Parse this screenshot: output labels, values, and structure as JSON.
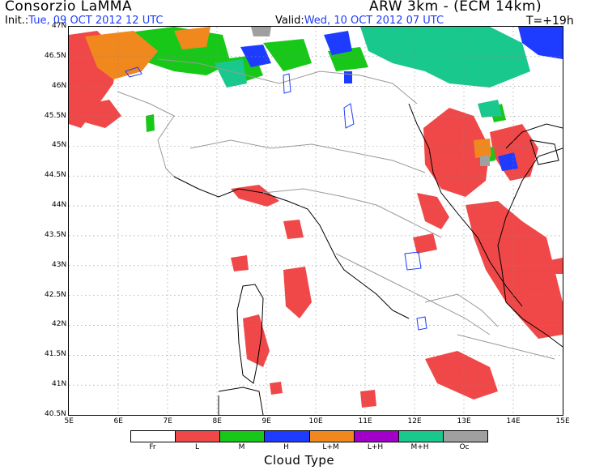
{
  "header": {
    "title": "Consorzio LaMMA",
    "model": "ARW 3km - (ECM 14km)",
    "init_label": "Init.:",
    "init_value": "Tue, 09 OCT 2012  12 UTC",
    "valid_label": "Valid:",
    "valid_value": "Wed, 10 OCT 2012  07 UTC",
    "forecast_step": "T=+19h"
  },
  "map": {
    "lon_ticks": [
      "5E",
      "6E",
      "7E",
      "8E",
      "9E",
      "10E",
      "11E",
      "12E",
      "13E",
      "14E",
      "15E"
    ],
    "lat_ticks": [
      "47N",
      "46.5N",
      "46N",
      "45.5N",
      "45N",
      "44.5N",
      "44N",
      "43.5N",
      "43N",
      "42.5N",
      "42N",
      "41.5N",
      "41N",
      "40.5N"
    ],
    "lon_range": [
      5,
      15
    ],
    "lat_range": [
      40.5,
      47
    ],
    "grid": true
  },
  "legend": {
    "title": "Cloud Type",
    "items": [
      {
        "label": "Fr",
        "color": "#ffffff"
      },
      {
        "label": "L",
        "color": "#f04848"
      },
      {
        "label": "M",
        "color": "#18c818"
      },
      {
        "label": "H",
        "color": "#1e3cff"
      },
      {
        "label": "L+M",
        "color": "#f0881e"
      },
      {
        "label": "L+H",
        "color": "#a000c8"
      },
      {
        "label": "M+H",
        "color": "#18c88c"
      },
      {
        "label": "Oc",
        "color": "#a0a0a0"
      }
    ]
  }
}
